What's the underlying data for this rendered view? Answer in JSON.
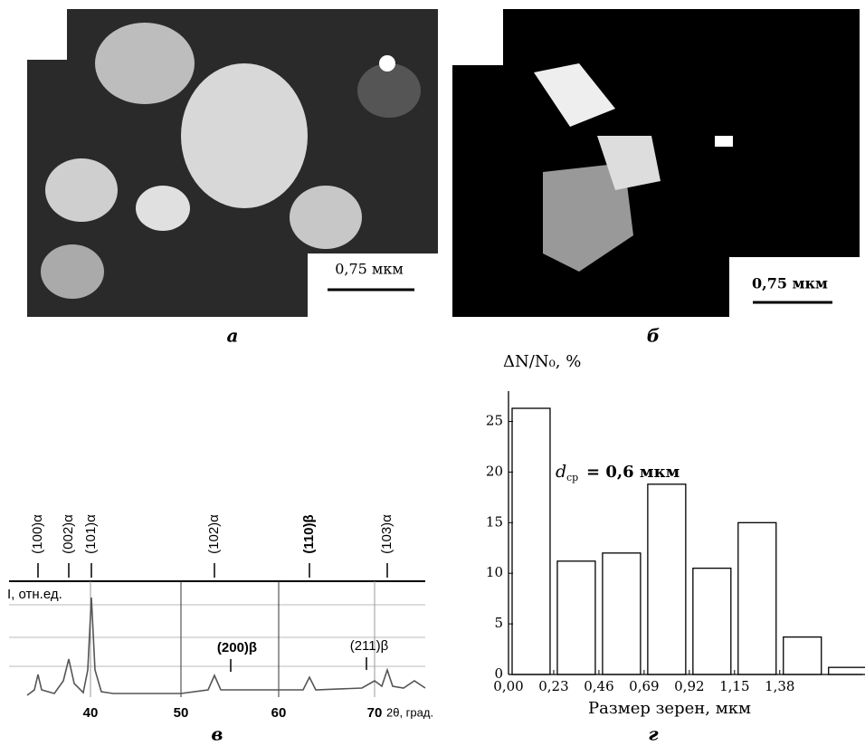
{
  "panels": [
    {
      "label": "а",
      "scale_bar": "0,75 мкм"
    },
    {
      "label": "б",
      "scale_bar": "0,75 мкм"
    },
    {
      "label": "в",
      "y_label": "I, отн.ед.",
      "x_label": "2θ, град.",
      "x_ticks": [
        "40",
        "50",
        "60",
        "70"
      ],
      "peaks": [
        "(100)α",
        "(002)α",
        "(101)α",
        "(102)α",
        "(110)β",
        "(103)α",
        "(200)β",
        "(211)β"
      ]
    },
    {
      "label": "г"
    }
  ],
  "chart_data": {
    "type": "bar",
    "x": [
      0.115,
      0.345,
      0.575,
      0.805,
      1.035,
      1.265,
      1.495,
      1.725
    ],
    "values": [
      26.3,
      11.2,
      12,
      18.8,
      10.5,
      15,
      3.7,
      0.7
    ],
    "color": "#ffffff",
    "xlim": [
      0,
      1.8
    ],
    "xticks": [
      {
        "value": 0,
        "label": "0,00"
      },
      {
        "value": 0.23,
        "label": "0,23"
      },
      {
        "value": 0.46,
        "label": "0,46"
      },
      {
        "value": 0.69,
        "label": "0,69"
      },
      {
        "value": 0.92,
        "label": "0,92"
      },
      {
        "value": 1.15,
        "label": "1,15"
      },
      {
        "value": 1.38,
        "label": "1,38"
      }
    ],
    "ylim": [
      0,
      28
    ],
    "yticks": [
      0,
      5,
      10,
      15,
      20,
      25
    ],
    "xlabel": "Размер зерен, мкм",
    "ylabel": "ΔN/N₀, %",
    "annotation": {
      "symbol": "d",
      "subscript": "ср",
      "text": "= 0,6 мкм"
    }
  }
}
